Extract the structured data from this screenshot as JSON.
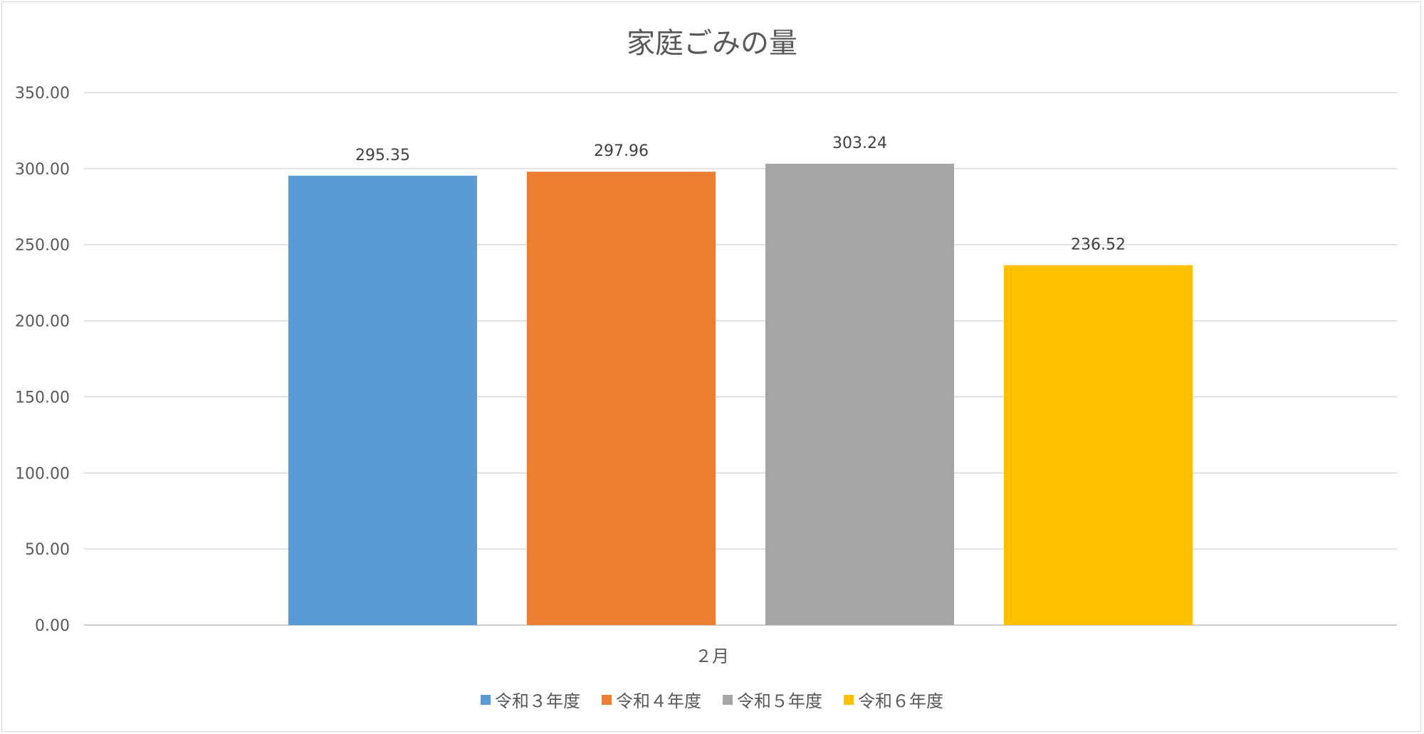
{
  "chart_data": {
    "type": "bar",
    "title": "家庭ごみの量",
    "categories": [
      "２月"
    ],
    "series": [
      {
        "name": "令和３年度",
        "values": [
          295.35
        ],
        "color": "#5B9BD5",
        "label": "295.35"
      },
      {
        "name": "令和４年度",
        "values": [
          297.96
        ],
        "color": "#ED7D31",
        "label": "297.96"
      },
      {
        "name": "令和５年度",
        "values": [
          303.24
        ],
        "color": "#A5A5A5",
        "label": "303.24"
      },
      {
        "name": "令和６年度",
        "values": [
          236.52
        ],
        "color": "#FFC000",
        "label": "236.52"
      }
    ],
    "ylim": [
      0,
      350
    ],
    "yticks": [
      "0.00",
      "50.00",
      "100.00",
      "150.00",
      "200.00",
      "250.00",
      "300.00",
      "350.00"
    ],
    "grid": true,
    "legend": "bottom",
    "xlabel": "",
    "ylabel": ""
  }
}
